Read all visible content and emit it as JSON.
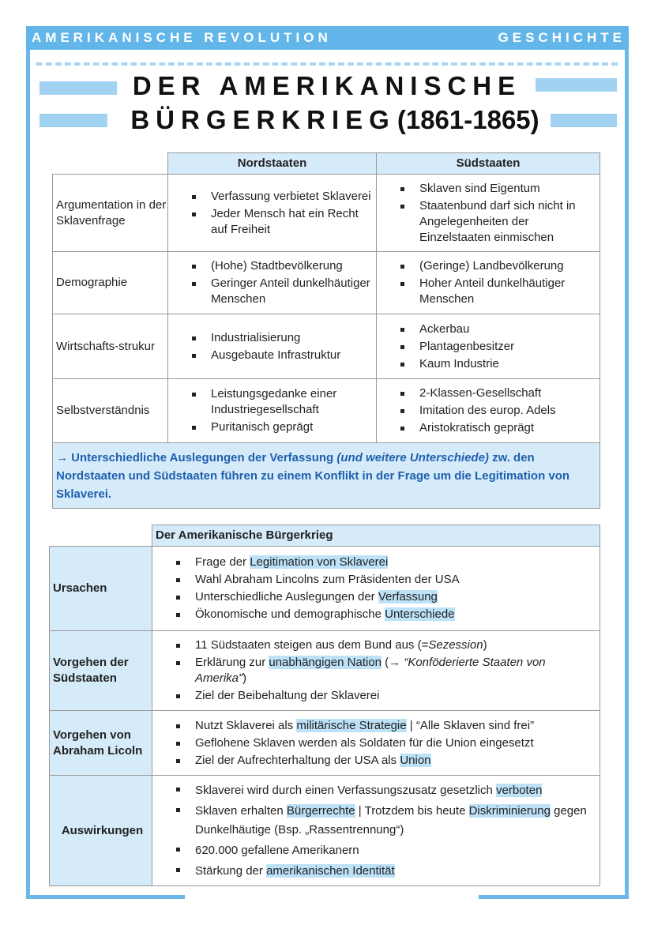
{
  "header": {
    "left": "AMERIKANISCHE REVOLUTION",
    "right": "GESCHICHTE"
  },
  "title": {
    "line1": "DER AMERIKANISCHE",
    "line2": "BÜRGERKRIEG",
    "years": "(1861-1865)"
  },
  "comparison": {
    "headers": [
      "Nordstaaten",
      "Südstaaten"
    ],
    "rows": [
      {
        "label": "Argumentation in der Sklavenfrage",
        "north": [
          "Verfassung verbietet Sklaverei",
          "Jeder Mensch hat ein Recht auf Freiheit"
        ],
        "south": [
          "Sklaven sind Eigentum",
          "Staatenbund darf sich nicht in Angelegenheiten der Einzelstaaten einmischen"
        ]
      },
      {
        "label": "Demographie",
        "north": [
          "(Hohe) Stadtbevölkerung",
          "Geringer Anteil dunkelhäutiger Menschen"
        ],
        "south": [
          "(Geringe) Landbevölkerung",
          "Hoher Anteil dunkelhäutiger Menschen"
        ]
      },
      {
        "label": "Wirtschafts-strukur",
        "north": [
          "Industrialisierung",
          "Ausgebaute Infrastruktur"
        ],
        "south": [
          "Ackerbau",
          "Plantagenbesitzer",
          "Kaum Industrie"
        ]
      },
      {
        "label": "Selbstverständnis",
        "north": [
          "Leistungsgedanke einer Industriegesellschaft",
          "Puritanisch geprägt"
        ],
        "south": [
          "2-Klassen-Gesellschaft",
          "Imitation des europ. Adels",
          "Aristokratisch geprägt"
        ]
      }
    ],
    "summary": {
      "a": "→ Unterschiedliche Auslegungen der Verfassung ",
      "b": "(und weitere Unterschiede)",
      "c": " zw. den Nordstaaten und Südstaaten führen zu einem Konflikt in der Frage um die Legitimation von Sklaverei."
    }
  },
  "war": {
    "header": "Der Amerikanische Bürgerkrieg",
    "rows": [
      {
        "label": "Ursachen",
        "items": [
          [
            {
              "t": "Frage der "
            },
            {
              "t": "Legitimation von Sklaverei",
              "hl": 1
            }
          ],
          [
            {
              "t": "Wahl Abraham Lincolns zum Präsidenten der USA"
            }
          ],
          [
            {
              "t": "Unterschiedliche Auslegungen der "
            },
            {
              "t": "Verfassung",
              "hl": 1
            }
          ],
          [
            {
              "t": "Ökonomische und demographische "
            },
            {
              "t": "Unterschiede",
              "hl": 1
            }
          ]
        ]
      },
      {
        "label": "Vorgehen der Südstaaten",
        "items": [
          [
            {
              "t": "11 Südstaaten steigen aus dem Bund aus (="
            },
            {
              "t": "Sezession",
              "i": 1
            },
            {
              "t": ")"
            }
          ],
          [
            {
              "t": "Erklärung zur "
            },
            {
              "t": "unabhängigen Nation",
              "hl": 1
            },
            {
              "t": " (→ "
            },
            {
              "t": "“Konföderierte Staaten von Amerika”",
              "i": 1
            },
            {
              "t": ")"
            }
          ],
          [
            {
              "t": "Ziel der Beibehaltung der Sklaverei"
            }
          ]
        ]
      },
      {
        "label": "Vorgehen von Abraham Licoln",
        "items": [
          [
            {
              "t": "Nutzt Sklaverei als "
            },
            {
              "t": "militärische Strategie",
              "hl": 1
            },
            {
              "t": "  |  “Alle Sklaven sind frei”"
            }
          ],
          [
            {
              "t": "Geflohene Sklaven werden als Soldaten für die Union eingesetzt"
            }
          ],
          [
            {
              "t": "Ziel der Aufrechterhaltung der USA als "
            },
            {
              "t": "Union",
              "hl": 1
            }
          ]
        ]
      },
      {
        "label": "Auswirkungen",
        "items": [
          [
            {
              "t": "Sklaverei wird durch einen Verfassungszusatz gesetzlich "
            },
            {
              "t": "verboten",
              "hl": 1
            }
          ],
          [
            {
              "t": "Sklaven erhalten "
            },
            {
              "t": "Bürgerrechte",
              "hl": 1
            },
            {
              "t": "  |  Trotzdem bis heute "
            },
            {
              "t": "Diskriminierung",
              "hl": 1
            },
            {
              "t": " gegen Dunkelhäutige (Bsp. „Rassentrennung“)"
            }
          ],
          [
            {
              "t": "620.000 gefallene Amerikanern"
            }
          ],
          [
            {
              "t": "Stärkung der "
            },
            {
              "t": "amerikanischen Identität",
              "hl": 1
            }
          ]
        ]
      }
    ]
  },
  "colors": {
    "accent": "#62b6ea",
    "light": "#d6ebfa",
    "highlight": "#bde1f7",
    "summary_text": "#1f5fae"
  }
}
